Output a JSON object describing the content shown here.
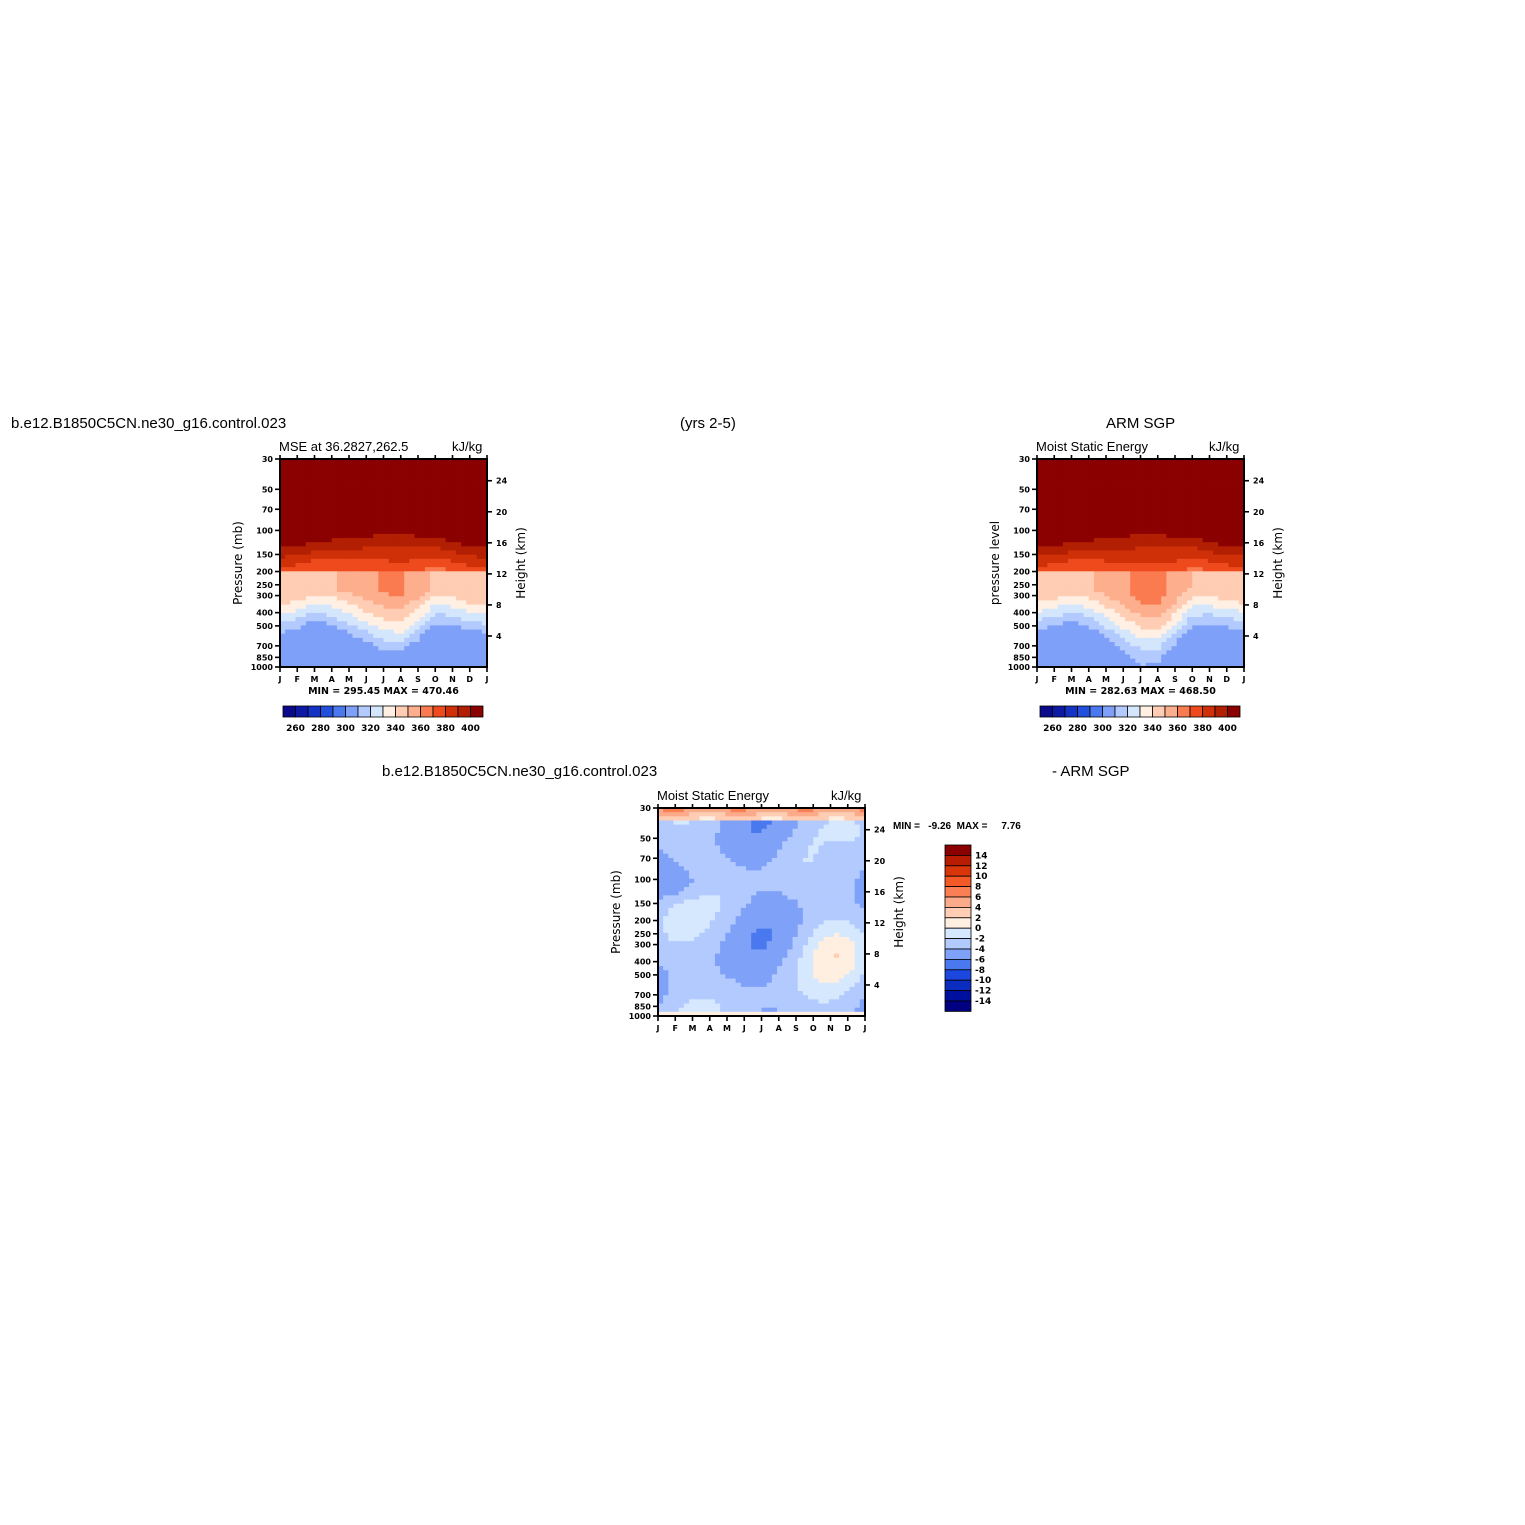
{
  "header": {
    "case_name": "b.e12.B1850C5CN.ne30_g16.control.023",
    "years": "(yrs 2-5)",
    "obs_name": "ARM SGP",
    "diff_case": "b.e12.B1850C5CN.ne30_g16.control.023",
    "diff_suffix": "- ARM SGP"
  },
  "colors": {
    "mse_palette": [
      "#0a0a8a",
      "#0d1aa6",
      "#1432c4",
      "#2250dc",
      "#4a78ee",
      "#7ea0f8",
      "#b3caff",
      "#d4e6fc",
      "#fff0e3",
      "#ffcdb3",
      "#fdae8d",
      "#fb7b51",
      "#ee4a1d",
      "#d03008",
      "#b21f03",
      "#8b0000"
    ],
    "diff_palette": [
      "#000080",
      "#00109e",
      "#0a2cbf",
      "#1c48e0",
      "#4a78ee",
      "#7fa2f8",
      "#b3caff",
      "#d6e8fd",
      "#ffefe0",
      "#ffcdb3",
      "#fcab8a",
      "#fb7f55",
      "#f45a28",
      "#d8360a",
      "#b81c03",
      "#8b0000"
    ]
  },
  "chart_data": [
    {
      "type": "heatmap",
      "id": "model",
      "title": "MSE at 36.2827,262.5",
      "units": "kJ/kg",
      "ylabel": "Pressure (mb)",
      "ylabel_right": "Height (km)",
      "x_ticks": [
        "J",
        "F",
        "M",
        "A",
        "M",
        "J",
        "J",
        "A",
        "S",
        "O",
        "N",
        "D",
        "J"
      ],
      "y_ticks": [
        30,
        50,
        70,
        100,
        150,
        200,
        250,
        300,
        400,
        500,
        700,
        850,
        1000
      ],
      "y_ticks_right": [
        24,
        20,
        16,
        12,
        8,
        4
      ],
      "minmax": "MIN = 295.45  MAX = 470.46",
      "colorbar": {
        "levels": [
          260,
          280,
          300,
          320,
          340,
          360,
          380,
          400
        ],
        "levels_step": 10
      },
      "field": {
        "trop_anom": [
          -4,
          -4,
          -6,
          -3,
          -2,
          1,
          4,
          5,
          2,
          -2,
          -4,
          -4,
          -4
        ],
        "surf_anom": [
          -10,
          -12,
          -10,
          -4,
          3,
          8,
          12,
          8,
          2,
          -6,
          -10,
          -12,
          -10
        ],
        "mid_anom": [
          0,
          -4,
          -8,
          -3,
          5,
          12,
          18,
          20,
          10,
          -3,
          -5,
          -2,
          0
        ],
        "strat_shift": [
          2,
          2,
          1,
          0,
          -1,
          -2,
          -3,
          -3,
          -2,
          -1,
          1,
          2,
          2
        ]
      }
    },
    {
      "type": "heatmap",
      "id": "obs",
      "title": "Moist Static Energy",
      "units": "kJ/kg",
      "ylabel": "pressure level",
      "ylabel_right": "Height (km)",
      "x_ticks": [
        "J",
        "F",
        "M",
        "A",
        "M",
        "J",
        "J",
        "A",
        "S",
        "O",
        "N",
        "D",
        "J"
      ],
      "y_ticks": [
        30,
        50,
        70,
        100,
        150,
        200,
        250,
        300,
        400,
        500,
        700,
        850,
        1000
      ],
      "y_ticks_right": [
        24,
        20,
        16,
        12,
        8,
        4
      ],
      "minmax": "MIN = 282.63  MAX = 468.50",
      "colorbar": {
        "levels": [
          260,
          280,
          300,
          320,
          340,
          360,
          380,
          400
        ],
        "levels_step": 10
      },
      "field": {
        "trop_anom": [
          -5,
          -5,
          -6,
          -3,
          0,
          4,
          7,
          8,
          4,
          -1,
          -4,
          -5,
          -5
        ],
        "surf_anom": [
          -14,
          -14,
          -12,
          -4,
          5,
          12,
          16,
          12,
          3,
          -8,
          -12,
          -14,
          -14
        ],
        "mid_anom": [
          -2,
          -5,
          -8,
          -2,
          6,
          14,
          22,
          22,
          12,
          -2,
          -6,
          -4,
          -2
        ],
        "strat_shift": [
          2,
          2,
          1,
          0,
          -1,
          -2,
          -3,
          -3,
          -2,
          -1,
          1,
          2,
          2
        ]
      }
    },
    {
      "type": "heatmap",
      "id": "diff",
      "title": "Moist Static Energy",
      "units": "kJ/kg",
      "ylabel": "Pressure (mb)",
      "ylabel_right": "Height (km)",
      "x_ticks": [
        "J",
        "F",
        "M",
        "A",
        "M",
        "J",
        "J",
        "A",
        "S",
        "O",
        "N",
        "D",
        "J"
      ],
      "y_ticks": [
        30,
        50,
        70,
        100,
        150,
        200,
        250,
        300,
        400,
        500,
        700,
        850,
        1000
      ],
      "y_ticks_right": [
        24,
        20,
        16,
        12,
        8,
        4
      ],
      "minmax": "MIN =   -9.26  MAX =     7.76",
      "colorbar": {
        "levels": [
          14,
          12,
          10,
          8,
          6,
          4,
          2,
          0,
          -2,
          -4,
          -6,
          -8,
          -10,
          -12,
          -14
        ],
        "levels_step": 2
      },
      "field": {
        "note": "diff"
      }
    }
  ]
}
